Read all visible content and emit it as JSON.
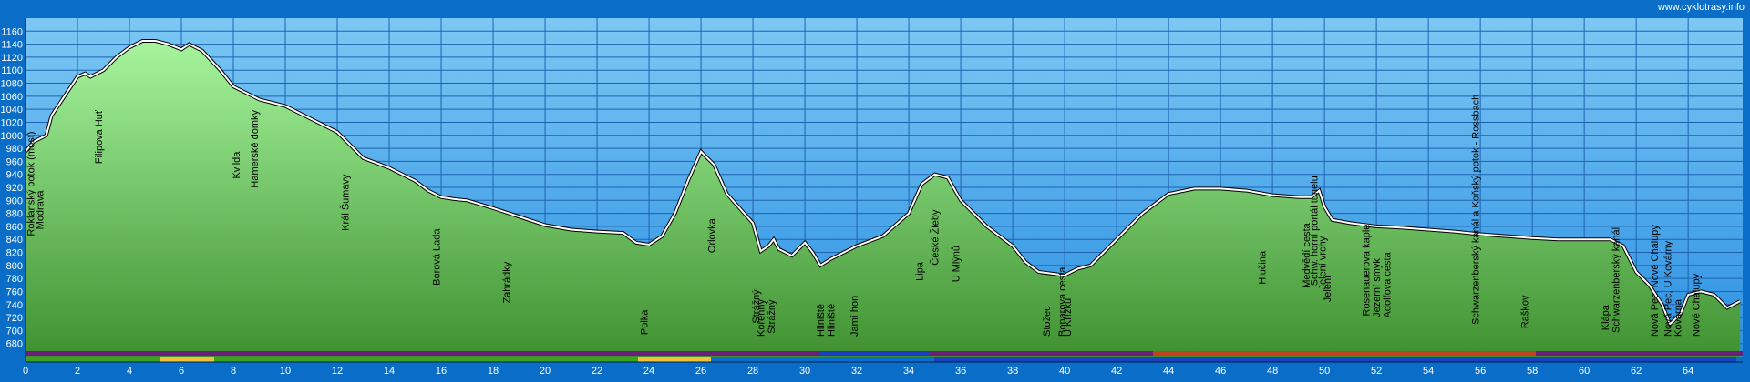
{
  "chart_data": {
    "type": "area",
    "source": "www.cyklotrasy.info",
    "x": [
      0,
      0.3,
      0.8,
      1,
      1.5,
      2,
      2.3,
      2.5,
      3,
      3.5,
      4,
      4.5,
      5,
      5.5,
      6,
      6.3,
      6.8,
      7.5,
      8,
      8.5,
      9,
      9.5,
      10,
      11,
      12,
      12.5,
      13,
      14,
      15,
      15.5,
      16,
      16.5,
      17,
      18,
      19,
      20,
      21,
      22,
      23,
      23.5,
      24,
      24.5,
      25,
      25.5,
      26,
      26.5,
      27,
      28,
      28.3,
      28.6,
      28.8,
      29,
      29.5,
      30,
      30.3,
      30.6,
      31,
      32,
      33,
      34,
      34.5,
      35,
      35.5,
      36,
      37,
      38,
      38.5,
      39,
      40,
      40.5,
      41,
      42,
      43,
      44,
      45,
      46,
      47,
      48,
      49,
      49.5,
      49.8,
      50,
      50.3,
      51,
      52,
      53,
      54,
      55,
      56,
      57,
      58,
      59,
      60,
      61,
      61.5,
      62,
      62.5,
      63,
      63.3,
      63.7,
      64,
      64.5,
      65,
      65.5,
      66
    ],
    "values": [
      975,
      990,
      1000,
      1030,
      1060,
      1090,
      1095,
      1090,
      1100,
      1120,
      1135,
      1145,
      1145,
      1140,
      1132,
      1140,
      1130,
      1100,
      1075,
      1065,
      1055,
      1050,
      1045,
      1025,
      1005,
      985,
      965,
      950,
      930,
      915,
      905,
      902,
      900,
      888,
      875,
      862,
      855,
      852,
      850,
      835,
      832,
      845,
      880,
      930,
      975,
      955,
      910,
      865,
      822,
      830,
      840,
      825,
      815,
      835,
      820,
      800,
      810,
      830,
      845,
      880,
      925,
      940,
      935,
      900,
      860,
      830,
      805,
      790,
      785,
      795,
      800,
      840,
      880,
      910,
      918,
      918,
      915,
      908,
      905,
      905,
      915,
      890,
      870,
      865,
      860,
      858,
      855,
      852,
      848,
      845,
      842,
      840,
      840,
      840,
      830,
      790,
      770,
      740,
      710,
      725,
      755,
      760,
      755,
      735,
      745
    ],
    "color": "#5fb548",
    "xlim": [
      0,
      66.1
    ],
    "ylim": [
      660,
      1180
    ],
    "xticks": [
      0,
      2,
      4,
      6,
      8,
      10,
      12,
      14,
      16,
      18,
      20,
      22,
      24,
      26,
      28,
      30,
      32,
      34,
      36,
      38,
      40,
      42,
      44,
      46,
      48,
      50,
      52,
      54,
      56,
      58,
      60,
      62,
      64
    ],
    "yticks": [
      680,
      700,
      720,
      740,
      760,
      780,
      800,
      820,
      840,
      860,
      880,
      900,
      920,
      940,
      960,
      980,
      1000,
      1020,
      1040,
      1060,
      1080,
      1100,
      1120,
      1140,
      1160
    ],
    "grid": true,
    "annotations": [
      {
        "x": 0.2,
        "text": "Roklanský potok (most)"
      },
      {
        "x": 0.55,
        "text": "Modrava"
      },
      {
        "x": 2.8,
        "text": "Filipova Huť"
      },
      {
        "x": 8.1,
        "text": "Kvilda"
      },
      {
        "x": 8.8,
        "text": "Hamerské domky"
      },
      {
        "x": 12.3,
        "text": "Král Šumavy"
      },
      {
        "x": 15.8,
        "text": "Borová Lada"
      },
      {
        "x": 18.5,
        "text": "Zahrádky"
      },
      {
        "x": 23.8,
        "text": "Polka"
      },
      {
        "x": 26.4,
        "text": "Orlovka"
      },
      {
        "x": 28.3,
        "text": "Kořenný"
      },
      {
        "x": 28.7,
        "text": "Strážný"
      },
      {
        "x": 28.1,
        "text": "Strážný"
      },
      {
        "x": 31.0,
        "text": "Hliniště"
      },
      {
        "x": 30.6,
        "text": "Hliniště"
      },
      {
        "x": 31.9,
        "text": "Jamí hon"
      },
      {
        "x": 34.4,
        "text": "Lipa"
      },
      {
        "x": 35.0,
        "text": "České Žleby"
      },
      {
        "x": 35.8,
        "text": "U Mlýnů"
      },
      {
        "x": 39.3,
        "text": "Stožec"
      },
      {
        "x": 39.9,
        "text": "Bonarova cesta"
      },
      {
        "x": 40.1,
        "text": "U Křížku"
      },
      {
        "x": 47.6,
        "text": "Hlučina"
      },
      {
        "x": 49.3,
        "text": "Medvědí cesta"
      },
      {
        "x": 49.6,
        "text": "Schw. horní portál tunelu"
      },
      {
        "x": 49.9,
        "text": "Jelení vrchy"
      },
      {
        "x": 50.1,
        "text": "Jelení"
      },
      {
        "x": 51.6,
        "text": "Rosenauerova kaple"
      },
      {
        "x": 52.0,
        "text": "Jezerní smyk"
      },
      {
        "x": 52.4,
        "text": "Adolfova cesta"
      },
      {
        "x": 55.8,
        "text": "Schwarzenberský kanál a Koňský potok - Rossbach"
      },
      {
        "x": 57.7,
        "text": "Raškov"
      },
      {
        "x": 60.8,
        "text": "Klápa"
      },
      {
        "x": 61.2,
        "text": "Schwarzenberský kanál"
      },
      {
        "x": 62.7,
        "text": "Nová Pec, Nové Chalupy"
      },
      {
        "x": 63.2,
        "text": "Nová Pec, U Kovárny"
      },
      {
        "x": 63.6,
        "text": "Kovárna"
      },
      {
        "x": 64.3,
        "text": "Nové Chalupy"
      }
    ]
  }
}
